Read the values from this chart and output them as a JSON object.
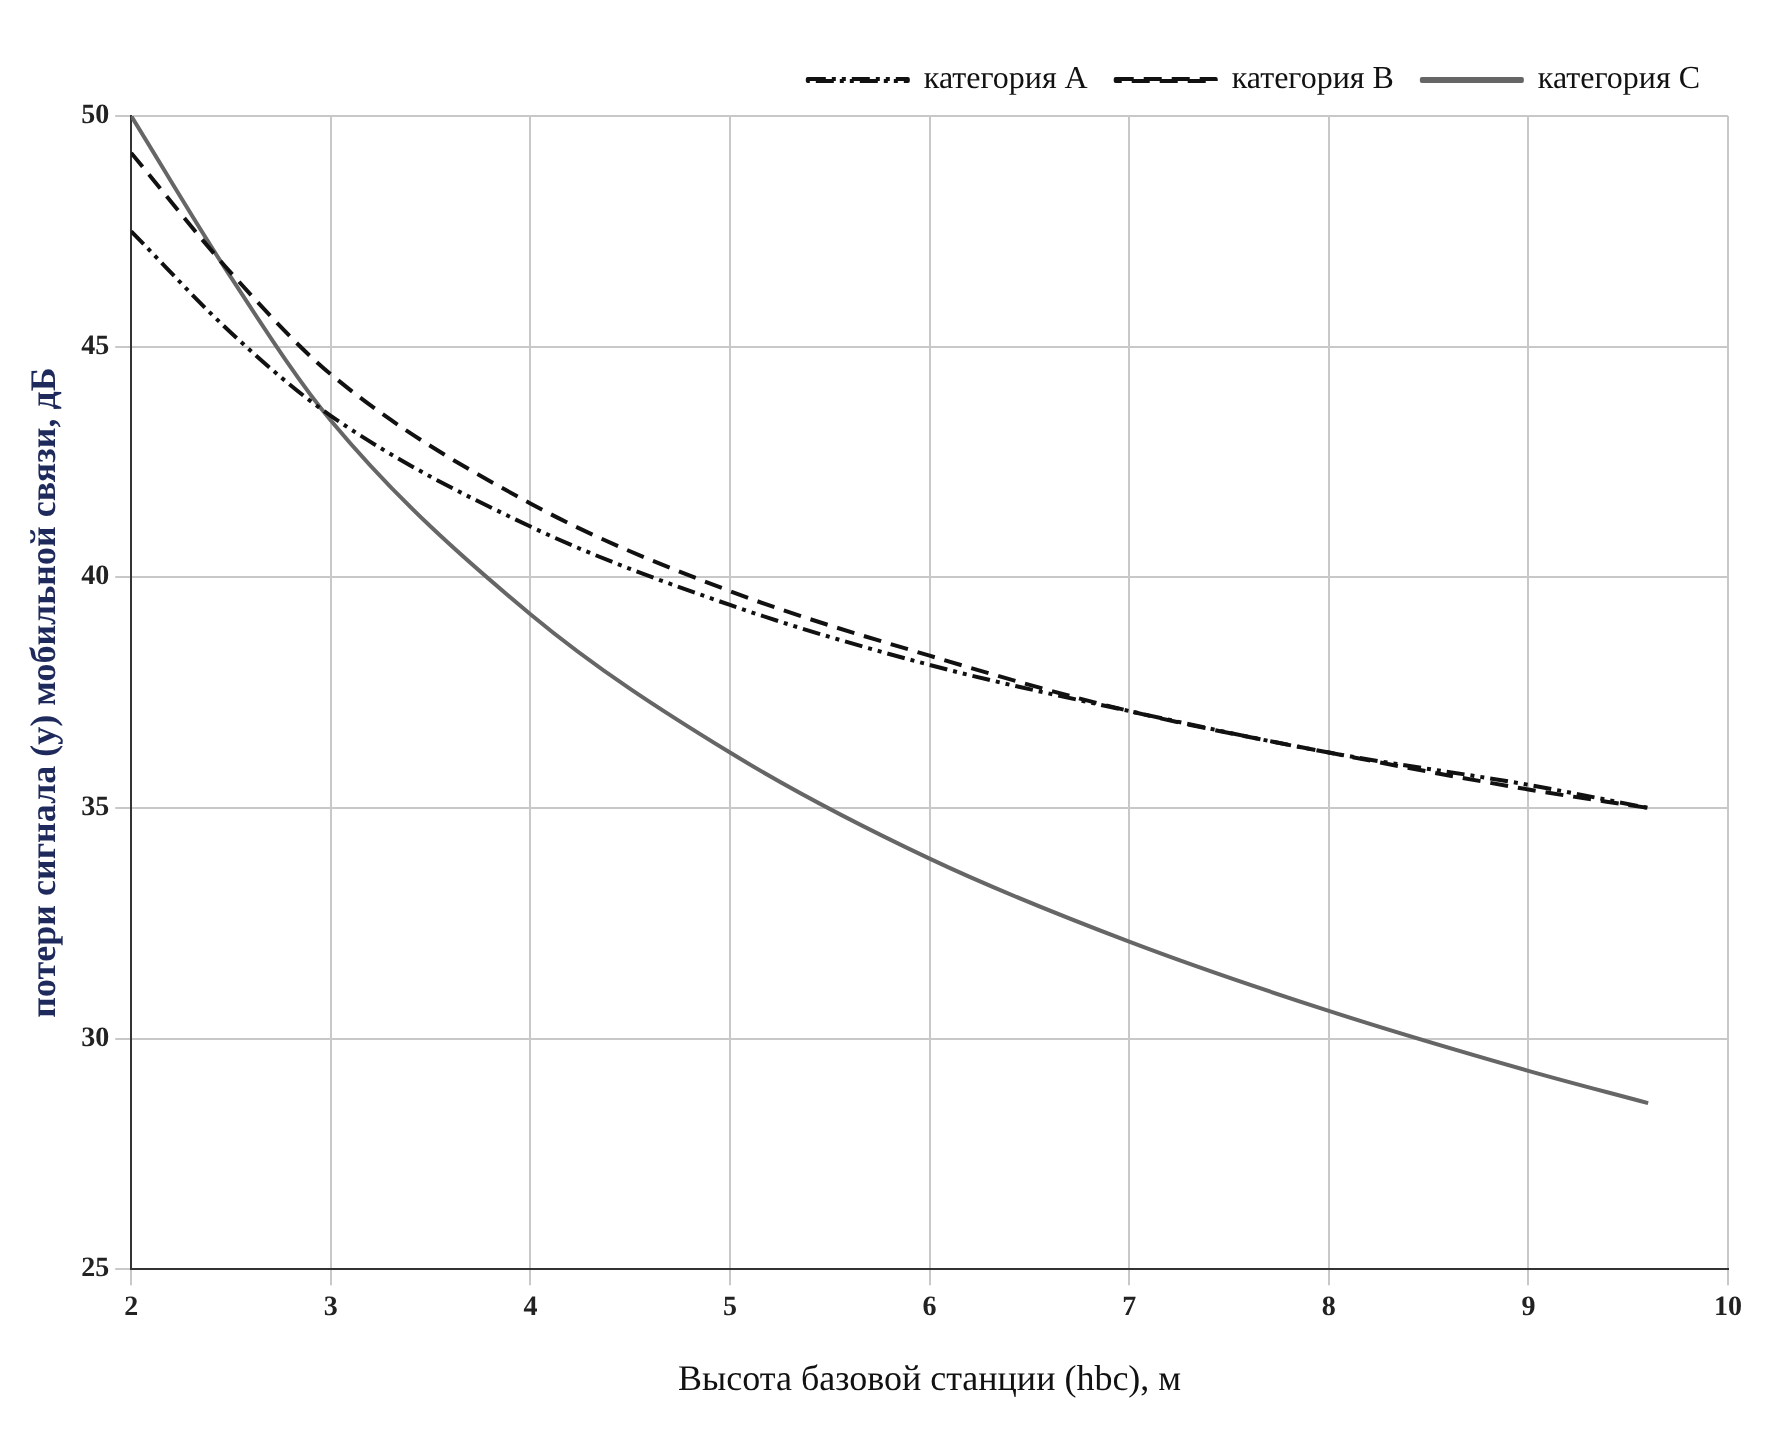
{
  "chart_data": {
    "type": "line",
    "xlabel": "Высота базовой станции (hbc), м",
    "ylabel": "потери сигнала (y) мобильной связи, дБ",
    "xlim": [
      2,
      10
    ],
    "xticks": [
      2,
      3,
      4,
      5,
      6,
      7,
      8,
      9,
      10
    ],
    "ylim": [
      25,
      50
    ],
    "yticks": [
      25,
      30,
      35,
      40,
      45,
      50
    ],
    "grid": true,
    "legend": "top right",
    "marker": "none",
    "series": [
      {
        "name": "категория A",
        "color": "#111111",
        "line_style": "dashdot",
        "x": [
          2,
          2.5,
          3,
          4,
          5,
          6,
          7,
          8,
          9,
          9.6
        ],
        "values": [
          47.5,
          45.3,
          43.5,
          41.1,
          39.4,
          38.1,
          37.1,
          36.2,
          35.5,
          35.0
        ]
      },
      {
        "name": "категория B",
        "color": "#111111",
        "line_style": "dashed",
        "x": [
          2,
          2.5,
          3,
          4,
          5,
          6,
          7,
          8,
          9,
          9.6
        ],
        "values": [
          49.2,
          46.6,
          44.4,
          41.6,
          39.7,
          38.3,
          37.1,
          36.2,
          35.4,
          35.0
        ]
      },
      {
        "name": "категория C",
        "color": "#666666",
        "line_style": "solid",
        "x": [
          2,
          2.5,
          3,
          4,
          5,
          6,
          7,
          8,
          9,
          9.6
        ],
        "values": [
          50.0,
          46.5,
          43.4,
          39.2,
          36.2,
          33.9,
          32.1,
          30.6,
          29.3,
          28.6
        ]
      }
    ]
  }
}
